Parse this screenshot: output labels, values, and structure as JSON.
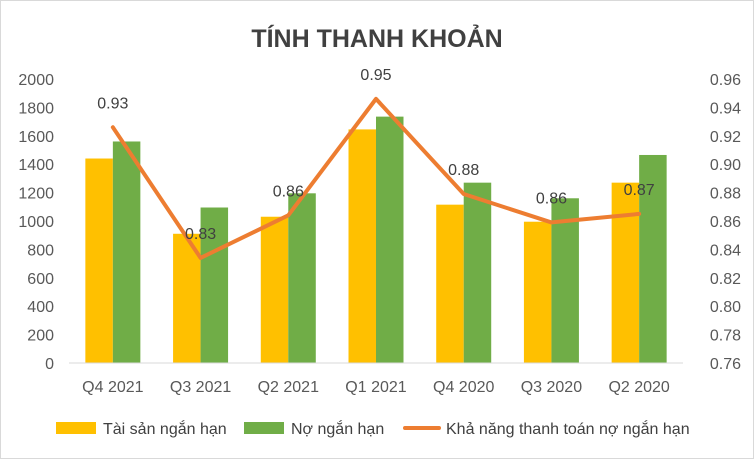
{
  "chart_data": {
    "type": "bar",
    "title": "TÍNH THANH KHOẢN",
    "categories": [
      "Q4 2021",
      "Q3 2021",
      "Q2 2021",
      "Q1 2021",
      "Q4 2020",
      "Q3 2020",
      "Q2 2020"
    ],
    "series": [
      {
        "name": "Tài sản ngắn hạn",
        "type": "bar",
        "axis": "left",
        "color": "#FFC000",
        "values": [
          1440,
          910,
          1030,
          1645,
          1115,
          995,
          1270
        ]
      },
      {
        "name": "Nợ ngắn hạn",
        "type": "bar",
        "axis": "left",
        "color": "#70AD47",
        "values": [
          1560,
          1095,
          1195,
          1735,
          1270,
          1160,
          1465
        ]
      },
      {
        "name": "Khả năng thanh toán nợ ngắn hạn",
        "type": "line",
        "axis": "right",
        "color": "#ED7D31",
        "values": [
          0.926,
          0.834,
          0.864,
          0.946,
          0.879,
          0.859,
          0.865
        ],
        "labels": [
          "0.93",
          "0.83",
          "0.86",
          "0.95",
          "0.88",
          "0.86",
          "0.87"
        ]
      }
    ],
    "y_left": {
      "min": 0,
      "max": 2000,
      "step": 200,
      "ticks": [
        "0",
        "200",
        "400",
        "600",
        "800",
        "1000",
        "1200",
        "1400",
        "1600",
        "1800",
        "2000"
      ]
    },
    "y_right": {
      "min": 0.76,
      "max": 0.96,
      "step": 0.02,
      "ticks": [
        "0.76",
        "0.78",
        "0.80",
        "0.82",
        "0.84",
        "0.86",
        "0.88",
        "0.90",
        "0.92",
        "0.94",
        "0.96"
      ]
    },
    "grid": false,
    "legend_position": "bottom"
  }
}
